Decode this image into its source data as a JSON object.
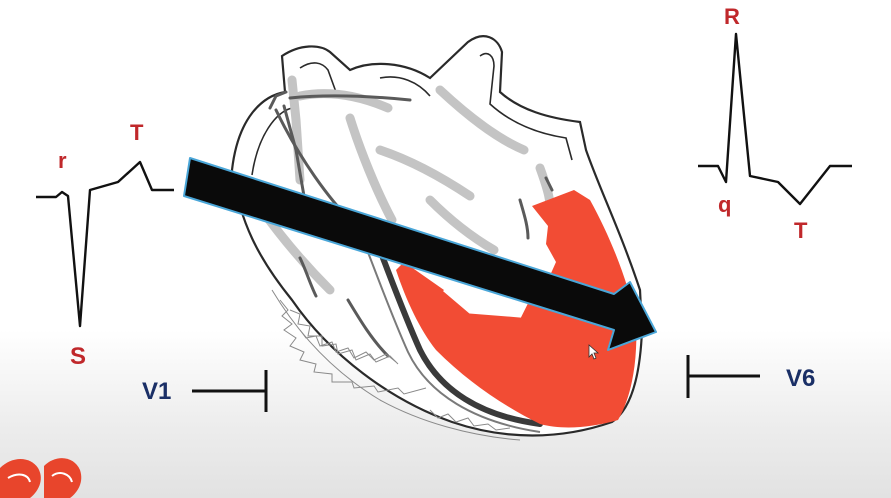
{
  "v1_waveform": {
    "r_label": "r",
    "t_label": "T",
    "s_label": "S",
    "lead_label": "V1"
  },
  "v6_waveform": {
    "r_label": "R",
    "q_label": "q",
    "t_label": "T",
    "lead_label": "V6"
  },
  "colors": {
    "label_red": "#c0282b",
    "label_navy": "#1a2f66",
    "depolarized_area": "#f24c34",
    "vector_arrow": "#0a0a0a",
    "arrow_outline": "#4aa6d8"
  },
  "icons": [
    "heart-diagram",
    "mean-vector-arrow",
    "electrode-v1-icon",
    "electrode-v6-icon",
    "mouse-cursor-icon",
    "logo-fragment"
  ]
}
